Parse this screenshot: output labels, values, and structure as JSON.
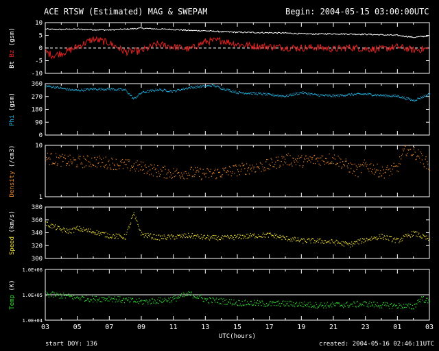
{
  "header": {
    "title": "ACE RTSW (Estimated) MAG & SWEPAM",
    "begin": "Begin: 2004-05-15 03:00:00UTC"
  },
  "footer": {
    "start_doy": "start DOY: 136",
    "created": "created: 2004-05-16 02:46:11UTC"
  },
  "colors": {
    "background": "#000000",
    "axes": "#ffffff",
    "bt": "#ffffff",
    "bz": "#e02020",
    "phi": "#22b6e8",
    "density": "#f08a2a",
    "speed": "#f0e030",
    "temp": "#30e030"
  },
  "chart_data": [
    {
      "type": "line",
      "panel": "mag",
      "ylabel": [
        "Bt",
        "Bz",
        "(gsm)"
      ],
      "ylim": [
        -10,
        10
      ],
      "yticks": [
        10,
        5,
        0,
        -5,
        -10
      ],
      "zero_line": true,
      "x_unit": "hours since 2004-05-15 03:00 UTC",
      "series": [
        {
          "name": "Bt",
          "x": [
            0,
            0.5,
            1,
            1.5,
            2,
            3,
            4,
            5,
            6,
            7,
            8,
            9,
            10,
            11,
            12,
            13,
            14,
            15,
            16,
            17,
            18,
            19,
            20,
            21,
            22,
            23,
            24
          ],
          "values": [
            7.5,
            7.3,
            7.3,
            7.4,
            7.4,
            7.2,
            7.1,
            7.4,
            7.8,
            7.5,
            7.3,
            6.9,
            6.8,
            6.4,
            6.2,
            6.1,
            6.0,
            5.9,
            5.6,
            5.5,
            5.6,
            5.5,
            5.4,
            5.2,
            5.0,
            4.2,
            4.8
          ]
        },
        {
          "name": "Bz",
          "x": [
            0,
            0.5,
            1,
            1.5,
            2,
            3,
            4,
            5,
            6,
            7,
            8,
            9,
            10,
            11,
            12,
            13,
            14,
            15,
            16,
            17,
            18,
            19,
            20,
            21,
            22,
            23,
            24
          ],
          "values": [
            -1.5,
            -3.0,
            -2.0,
            -1.0,
            0.5,
            3.5,
            2.0,
            -1.5,
            -1.2,
            1.5,
            0.5,
            -0.5,
            2.5,
            3.0,
            1.5,
            0.8,
            0.5,
            0.2,
            0.0,
            0.3,
            -0.5,
            0.2,
            -0.3,
            -0.5,
            0.5,
            -0.8,
            -0.3
          ]
        }
      ]
    },
    {
      "type": "scatter",
      "panel": "phi",
      "ylabel": [
        "Phi",
        "(gsm)"
      ],
      "ylim": [
        0,
        360
      ],
      "yticks": [
        360,
        270,
        180,
        90,
        0
      ],
      "series": [
        {
          "name": "Phi",
          "x": [
            0,
            0.5,
            1,
            1.5,
            2,
            3,
            4,
            5,
            5.5,
            6,
            7,
            8,
            9,
            10,
            10.5,
            11,
            12,
            13,
            14,
            15,
            16,
            17,
            18,
            19,
            20,
            21,
            22,
            23,
            24
          ],
          "values": [
            345,
            340,
            330,
            320,
            315,
            325,
            325,
            318,
            255,
            300,
            320,
            310,
            335,
            345,
            350,
            330,
            300,
            295,
            285,
            275,
            300,
            282,
            276,
            286,
            290,
            280,
            275,
            245,
            290
          ]
        }
      ]
    },
    {
      "type": "scatter",
      "panel": "density",
      "ylabel": [
        "Density",
        "(/cm3)"
      ],
      "yscale": "log",
      "ylim": [
        1,
        10
      ],
      "yticks": [
        10,
        1
      ],
      "series": [
        {
          "name": "Density",
          "x": [
            0,
            1,
            2,
            3,
            4,
            5,
            6,
            7,
            8,
            9,
            10,
            11,
            12,
            13,
            14,
            15,
            16,
            17,
            18,
            19,
            19.5,
            20,
            21,
            22,
            22.5,
            23,
            24
          ],
          "values": [
            5.8,
            5.2,
            4.8,
            5.0,
            4.6,
            4.2,
            3.8,
            3.2,
            2.9,
            3.0,
            2.8,
            3.0,
            3.4,
            3.8,
            4.2,
            5.4,
            5.0,
            5.4,
            5.6,
            3.8,
            3.2,
            4.2,
            3.0,
            3.6,
            8.5,
            7.5,
            3.8
          ]
        }
      ]
    },
    {
      "type": "scatter",
      "panel": "speed",
      "ylabel": [
        "Speed",
        "(km/s)"
      ],
      "ylim": [
        300,
        380
      ],
      "yticks": [
        380,
        360,
        340,
        320,
        300
      ],
      "series": [
        {
          "name": "Speed",
          "x": [
            0,
            1,
            1.5,
            2,
            3,
            4,
            5,
            5.5,
            6,
            7,
            8,
            9,
            10,
            11,
            12,
            13,
            14,
            15,
            16,
            17,
            18,
            19,
            20,
            21,
            22,
            23,
            24
          ],
          "values": [
            355,
            345,
            343,
            347,
            342,
            336,
            334,
            370,
            338,
            333,
            334,
            336,
            333,
            332,
            334,
            336,
            337,
            332,
            328,
            328,
            326,
            322,
            330,
            335,
            328,
            340,
            330
          ]
        }
      ]
    },
    {
      "type": "scatter",
      "panel": "temp",
      "ylabel": [
        "Temp",
        "(K)"
      ],
      "yscale": "log",
      "ylim": [
        10000,
        1000000
      ],
      "yticks": [
        "1.0E+06",
        "1.0E+05",
        "1.0E+04"
      ],
      "reference_line": 100000,
      "series": [
        {
          "name": "Temp",
          "x": [
            0,
            1,
            2,
            3,
            4,
            5,
            6,
            7,
            8,
            9,
            10,
            11,
            12,
            13,
            14,
            15,
            16,
            17,
            18,
            19,
            20,
            21,
            22,
            23,
            23.5,
            24
          ],
          "values": [
            110000,
            95000,
            80000,
            70000,
            75000,
            62000,
            55000,
            60000,
            70000,
            110000,
            65000,
            58000,
            50000,
            48000,
            45000,
            46000,
            43000,
            40000,
            41000,
            42000,
            45000,
            40000,
            38000,
            34000,
            75000,
            50000
          ]
        }
      ]
    }
  ],
  "xaxis": {
    "label": "UTC(hours)",
    "ticks": [
      "03",
      "05",
      "07",
      "09",
      "11",
      "13",
      "15",
      "17",
      "19",
      "21",
      "23",
      "01",
      "03"
    ],
    "range_hours": [
      0,
      24
    ]
  }
}
